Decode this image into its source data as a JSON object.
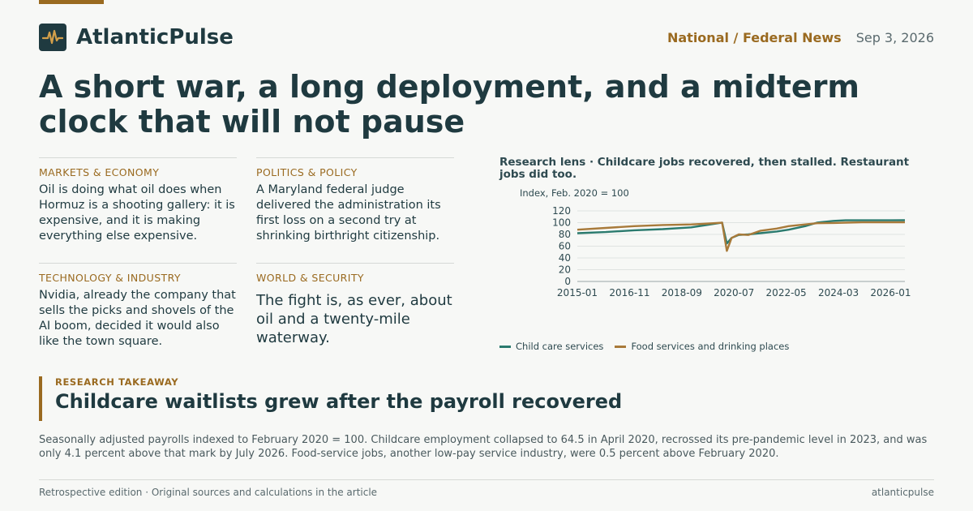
{
  "brand": {
    "name": "AtlanticPulse",
    "logo_icon": "pulse-icon"
  },
  "header": {
    "section": "National / Federal News",
    "date": "Sep 3, 2026"
  },
  "headline": "A short war, a long deployment, and a midterm clock that will not pause",
  "cards": [
    {
      "kicker": "MARKETS & ECONOMY",
      "text": "Oil is doing what oil does when Hormuz is a shooting gallery: it is expensive, and it is making everything else expensive."
    },
    {
      "kicker": "POLITICS & POLICY",
      "text": "A Maryland federal judge delivered the administration its first loss on a second try at shrinking birthright citizenship."
    },
    {
      "kicker": "TECHNOLOGY & INDUSTRY",
      "text": "Nvidia, already the company that sells the picks and shovels of the AI boom, decided it would also like the town square."
    },
    {
      "kicker": "WORLD & SECURITY",
      "text": "The fight is, as ever, about oil and a twenty-mile waterway."
    }
  ],
  "chart_data": {
    "type": "line",
    "title": "Research lens · Childcare jobs recovered, then stalled. Restaurant jobs did too.",
    "ylabel": "Index, Feb. 2020 = 100",
    "ylim": [
      0,
      120
    ],
    "yticks": [
      0,
      20,
      40,
      60,
      80,
      100,
      120
    ],
    "x_ticks": [
      "2015-01",
      "2016-11",
      "2018-09",
      "2020-07",
      "2022-05",
      "2024-03",
      "2026-01"
    ],
    "grid": true,
    "legend": "bottom-left",
    "colors": {
      "Child care services": "#2a7a6e",
      "Food services and drinking places": "#a87a3a"
    },
    "series": [
      {
        "name": "Child care services",
        "x": [
          "2015-01",
          "2016-01",
          "2017-01",
          "2018-01",
          "2019-01",
          "2019-06",
          "2020-02",
          "2020-04",
          "2020-06",
          "2020-09",
          "2021-01",
          "2021-06",
          "2022-01",
          "2022-06",
          "2023-01",
          "2023-06",
          "2024-01",
          "2024-06",
          "2025-01",
          "2025-06",
          "2026-01",
          "2026-07"
        ],
        "values": [
          82,
          84,
          87,
          89,
          92,
          95,
          100,
          64.5,
          74,
          79,
          80,
          82,
          85,
          88,
          94,
          100,
          103,
          104,
          104,
          104,
          104,
          104.1
        ]
      },
      {
        "name": "Food services and drinking places",
        "x": [
          "2015-01",
          "2016-01",
          "2017-01",
          "2018-01",
          "2019-01",
          "2019-06",
          "2020-02",
          "2020-04",
          "2020-06",
          "2020-09",
          "2021-01",
          "2021-06",
          "2022-01",
          "2022-06",
          "2023-01",
          "2023-06",
          "2024-01",
          "2024-06",
          "2025-01",
          "2025-06",
          "2026-01",
          "2026-07"
        ],
        "values": [
          88,
          91,
          94,
          96,
          97,
          98,
          100,
          52,
          74,
          80,
          79,
          86,
          90,
          94,
          97,
          99,
          99.5,
          100,
          100.5,
          100.5,
          100.5,
          100.5
        ]
      }
    ]
  },
  "takeaway": {
    "kicker": "RESEARCH TAKEAWAY",
    "title": "Childcare waitlists grew after the payroll recovered"
  },
  "note": "Seasonally adjusted payrolls indexed to February 2020 = 100. Childcare employment collapsed to 64.5 in April 2020, recrossed its pre-pandemic level in 2023, and was only 4.1 percent above that mark by July 2026. Food-service jobs, another low-pay service industry, were 0.5 percent above February 2020.",
  "footer": {
    "left": "Retrospective edition · Original sources and calculations in the article",
    "right": "atlanticpulse"
  }
}
